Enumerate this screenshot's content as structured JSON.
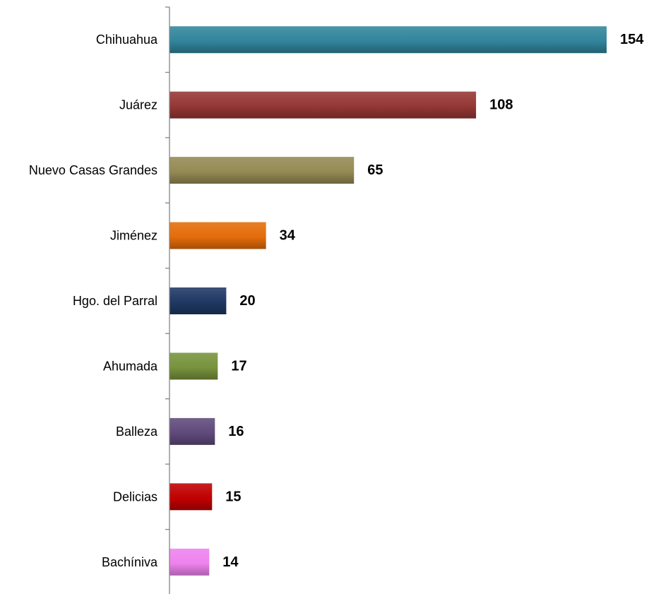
{
  "chart_data": {
    "type": "bar",
    "orientation": "horizontal",
    "title": "",
    "xlabel": "",
    "ylabel": "",
    "grid": false,
    "legend": "none",
    "xlim": [
      0,
      154
    ],
    "categories": [
      "Chihuahua",
      "Juárez",
      "Nuevo Casas Grandes",
      "Jiménez",
      "Hgo. del Parral",
      "Ahumada",
      "Balleza",
      "Delicias",
      "Bachíniva"
    ],
    "values": [
      154,
      108,
      65,
      34,
      20,
      17,
      16,
      15,
      14
    ],
    "colors": [
      "#31859c",
      "#953735",
      "#948a54",
      "#e46c0a",
      "#1f3864",
      "#77933c",
      "#604a7b",
      "#c00000",
      "#ee82ee"
    ]
  }
}
